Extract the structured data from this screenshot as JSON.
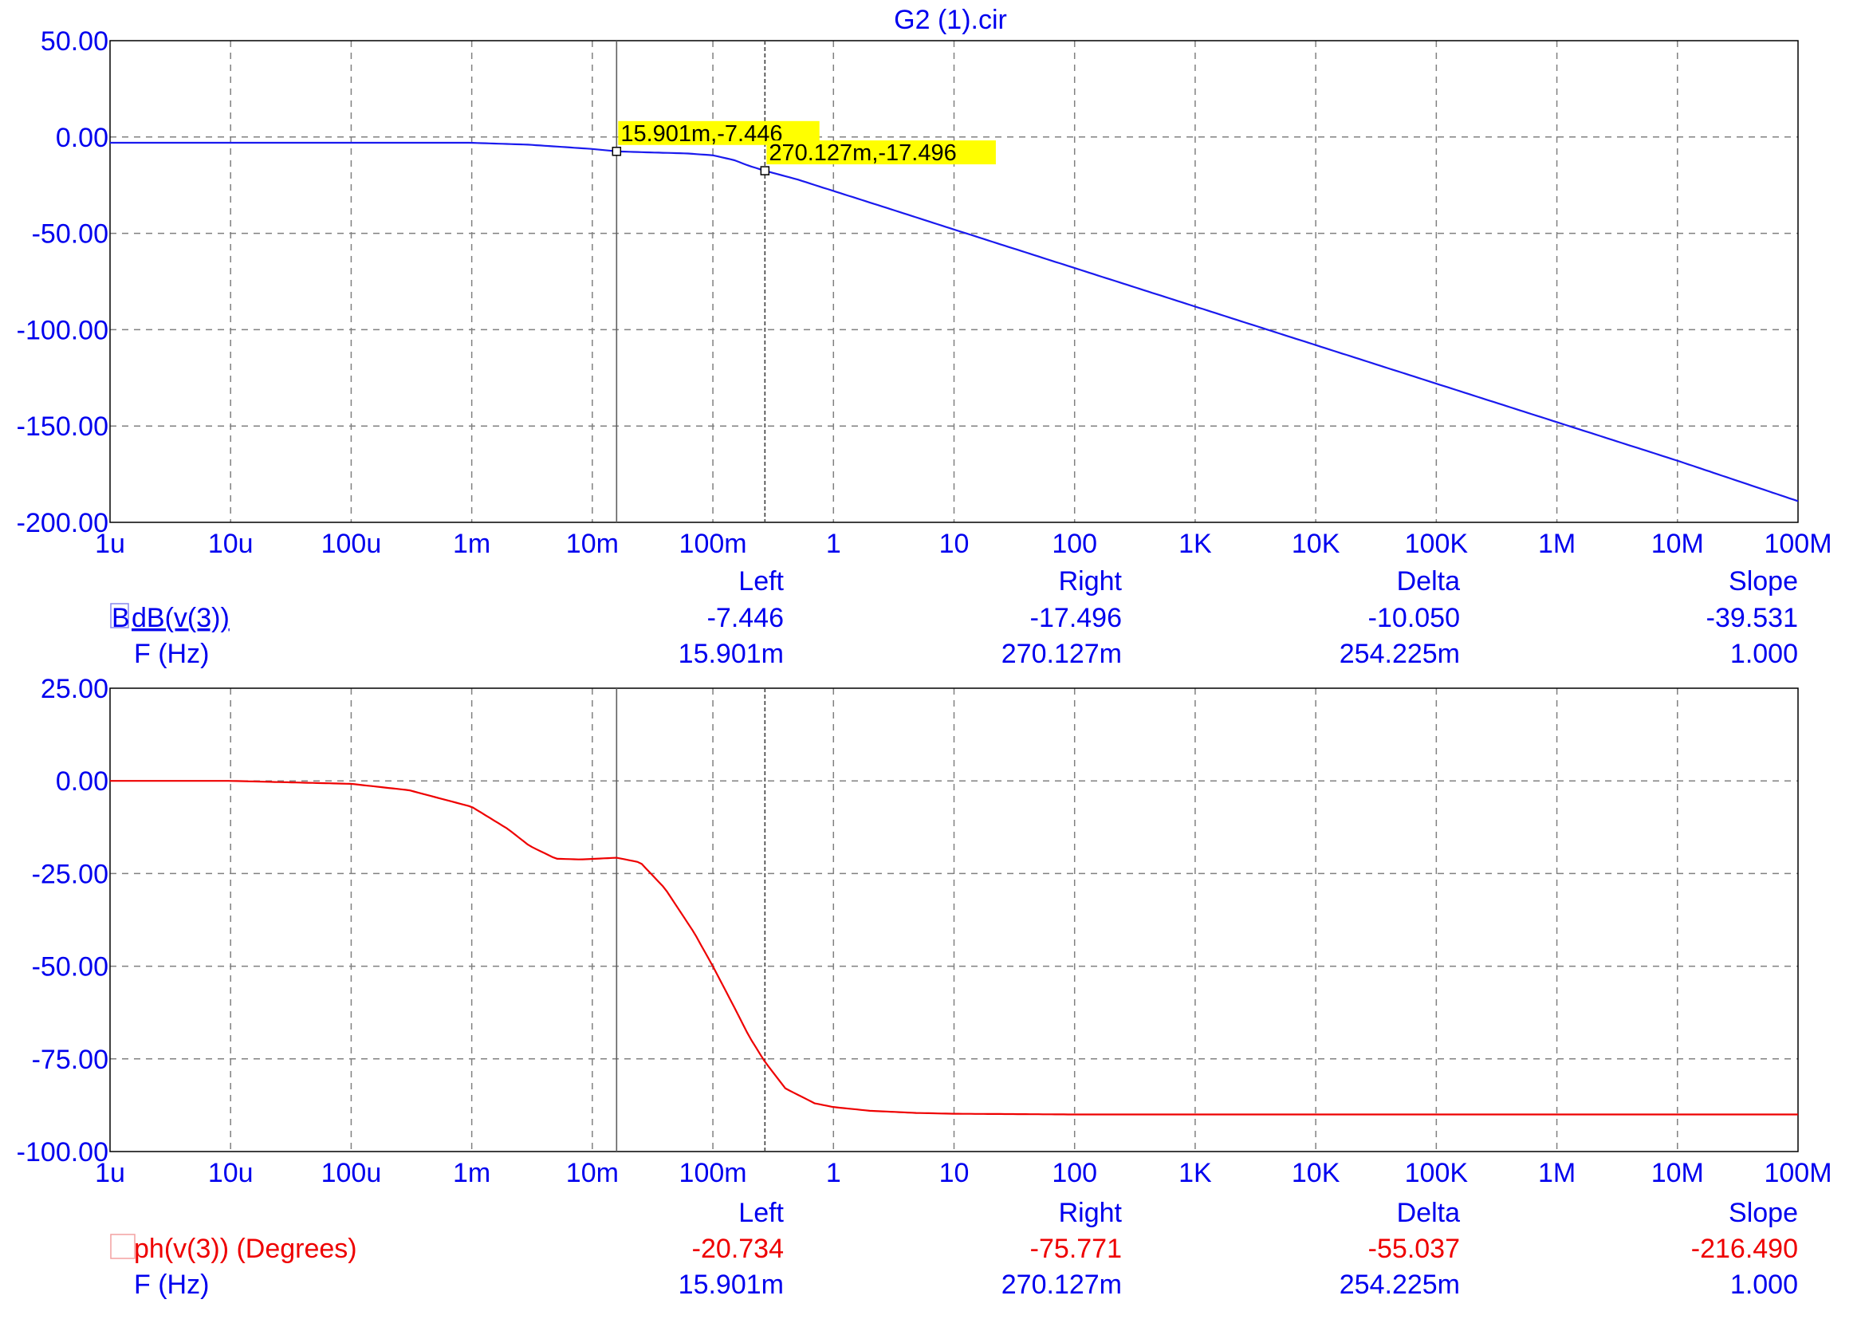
{
  "title": "G2 (1).cir",
  "colors": {
    "axis_text": "#0000ee",
    "magnitude_trace": "#1a1aee",
    "phase_trace": "#ee0000",
    "grid": "#808080",
    "cursor_label_bg": "#ffff00",
    "cursor_line": "#808080"
  },
  "x_tick_labels": [
    "1u",
    "10u",
    "100u",
    "1m",
    "10m",
    "100m",
    "1",
    "10",
    "100",
    "1K",
    "10K",
    "100K",
    "1M",
    "10M",
    "100M"
  ],
  "readout_headers": {
    "left": "Left",
    "right": "Right",
    "delta": "Delta",
    "slope": "Slope"
  },
  "cursor_labels": [
    {
      "text": "15.901m,-7.446",
      "x": 0.015901,
      "y": -7.446
    },
    {
      "text": "270.127m,-17.496",
      "x": 0.270127,
      "y": -17.496
    }
  ],
  "magnitude_readout": {
    "marker": "B",
    "name": "dB(v(3))",
    "left": "-7.446",
    "right": "-17.496",
    "delta": "-10.050",
    "slope": "-39.531",
    "freq_label": "F (Hz)",
    "f_left": "15.901m",
    "f_right": "270.127m",
    "f_delta": "254.225m",
    "f_slope": "1.000"
  },
  "phase_readout": {
    "name": "ph(v(3)) (Degrees)",
    "left": "-20.734",
    "right": "-75.771",
    "delta": "-55.037",
    "slope": "-216.490",
    "freq_label": "F (Hz)",
    "f_left": "15.901m",
    "f_right": "270.127m",
    "f_delta": "254.225m",
    "f_slope": "1.000"
  },
  "chart_data": [
    {
      "type": "line",
      "x_scale": "log",
      "xlim": [
        1e-06,
        100000000.0
      ],
      "ylim": [
        -200,
        50
      ],
      "y_tick_labels": [
        "50.00",
        "0.00",
        "-50.00",
        "-100.00",
        "-150.00",
        "-200.00"
      ],
      "y_ticks": [
        50,
        0,
        -50,
        -100,
        -150,
        -200
      ],
      "grid": true,
      "cursor_x": [
        0.015901,
        0.270127
      ],
      "series": [
        {
          "name": "dB(v(3))",
          "x": [
            1e-06,
            1e-05,
            0.0001,
            0.001,
            0.003,
            0.01,
            0.015901,
            0.03,
            0.06,
            0.1,
            0.15,
            0.2,
            0.270127,
            0.5,
            1,
            3,
            10,
            100,
            1000,
            10000.0,
            100000.0,
            1000000.0,
            10000000.0,
            100000000.0
          ],
          "y": [
            -3,
            -3,
            -3,
            -3,
            -4,
            -6.2,
            -7.446,
            -8,
            -8.5,
            -9.5,
            -12,
            -15,
            -17.496,
            -22,
            -28,
            -37.5,
            -48,
            -68,
            -88,
            -108,
            -128,
            -148,
            -168,
            -189
          ]
        }
      ]
    },
    {
      "type": "line",
      "x_scale": "log",
      "xlim": [
        1e-06,
        100000000.0
      ],
      "ylim": [
        -100,
        25
      ],
      "y_tick_labels": [
        "25.00",
        "0.00",
        "-25.00",
        "-50.00",
        "-75.00",
        "-100.00"
      ],
      "y_ticks": [
        25,
        0,
        -25,
        -50,
        -75,
        -100
      ],
      "grid": true,
      "cursor_x": [
        0.015901,
        0.270127
      ],
      "series": [
        {
          "name": "ph(v(3)) (Degrees)",
          "x": [
            1e-06,
            1e-05,
            0.0001,
            0.0003,
            0.001,
            0.002,
            0.003,
            0.005,
            0.008,
            0.015901,
            0.025,
            0.04,
            0.07,
            0.1,
            0.15,
            0.2,
            0.270127,
            0.4,
            0.7,
            1,
            2,
            5,
            10,
            100,
            1000,
            100000000.0
          ],
          "y": [
            0,
            0,
            -0.8,
            -2.5,
            -7,
            -13,
            -17.5,
            -21,
            -21.2,
            -20.734,
            -22,
            -29,
            -41,
            -50,
            -61,
            -69,
            -75.771,
            -83,
            -87,
            -88,
            -89,
            -89.6,
            -89.8,
            -90,
            -90,
            -90
          ]
        }
      ]
    }
  ]
}
